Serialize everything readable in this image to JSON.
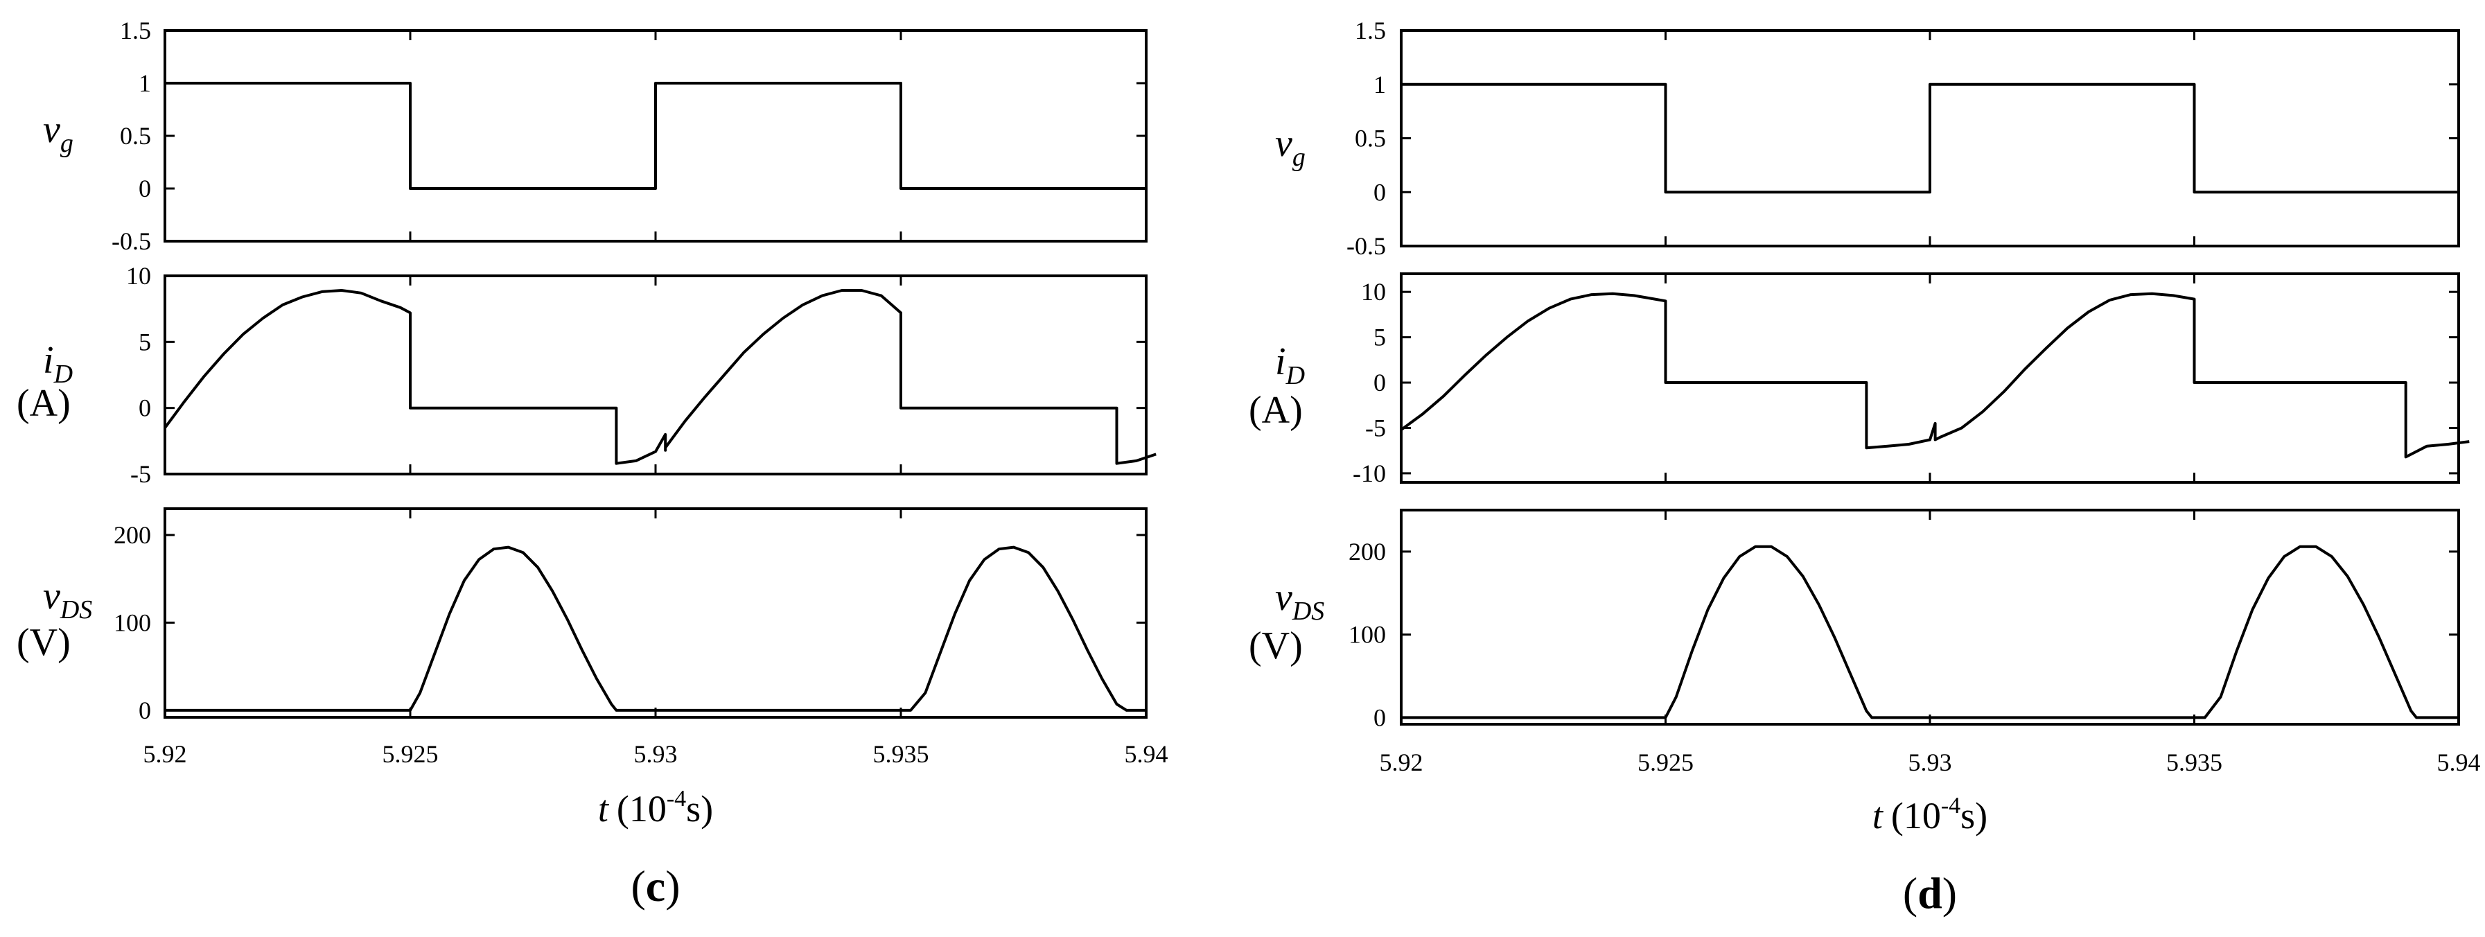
{
  "chart_data": [
    {
      "panel_label": "(c)",
      "panel_letter": "c",
      "type": "line",
      "x_tick_labels": [
        "5.92",
        "5.925",
        "5.93",
        "5.935",
        "5.94"
      ],
      "xlim": [
        5.92,
        5.94
      ],
      "xlabel": {
        "var": "t",
        "unit": "(10",
        "exp": "-4",
        "unit_end": "s)"
      },
      "subplots": [
        {
          "id": "vg",
          "ylabel": {
            "main": "v",
            "sub": "g"
          },
          "ylim": [
            -0.5,
            1.5
          ],
          "y_ticks": [
            1.5,
            1,
            0.5,
            0,
            -0.5
          ],
          "y_tick_labels": [
            "1.5",
            "1",
            "0.5",
            "0",
            "-0.5"
          ],
          "series": [
            {
              "x": [
                5.92,
                5.925,
                5.925,
                5.93,
                5.93,
                5.935,
                5.935,
                5.94
              ],
              "y": [
                1,
                1,
                0,
                0,
                1,
                1,
                0,
                0
              ]
            }
          ]
        },
        {
          "id": "iD",
          "ylabel": {
            "main": "i",
            "sub": "D",
            "unit": "(A)"
          },
          "ylim": [
            -5,
            10
          ],
          "y_ticks": [
            10,
            5,
            0,
            -5
          ],
          "y_tick_labels": [
            "10",
            "5",
            "0",
            "-5"
          ],
          "series": [
            {
              "x": [
                5.92,
                5.9204,
                5.9208,
                5.9212,
                5.9216,
                5.922,
                5.9224,
                5.9228,
                5.9232,
                5.9236,
                5.924,
                5.9244,
                5.9248,
                5.925,
                5.925,
                5.9292,
                5.9292,
                5.9296,
                5.93,
                5.9302,
                5.9302,
                5.9302,
                5.9306,
                5.931,
                5.9314,
                5.9318,
                5.9322,
                5.9326,
                5.933,
                5.9334,
                5.9338,
                5.9342,
                5.9346,
                5.935,
                5.935,
                5.9394,
                5.9394,
                5.9398,
                5.9402
              ],
              "y": [
                -1.5,
                0.5,
                2.4,
                4.1,
                5.6,
                6.8,
                7.8,
                8.4,
                8.8,
                8.9,
                8.7,
                8.1,
                7.6,
                7.2,
                0,
                0,
                -4.2,
                -4.0,
                -3.3,
                -2.0,
                -3.2,
                -3.0,
                -1.0,
                0.8,
                2.5,
                4.2,
                5.6,
                6.8,
                7.8,
                8.5,
                8.9,
                8.9,
                8.5,
                7.2,
                0,
                0,
                -4.2,
                -4.0,
                -3.5
              ]
            }
          ]
        },
        {
          "id": "vDS",
          "ylabel": {
            "main": "v",
            "sub": "DS",
            "unit": "(V)"
          },
          "ylim": [
            -8,
            230
          ],
          "y_ticks": [
            200,
            100,
            0
          ],
          "y_tick_labels": [
            "200",
            "100",
            "0"
          ],
          "series": [
            {
              "x": [
                5.92,
                5.925,
                5.9252,
                5.9255,
                5.9258,
                5.9261,
                5.9264,
                5.9267,
                5.927,
                5.9273,
                5.9276,
                5.9279,
                5.9282,
                5.9285,
                5.9288,
                5.9291,
                5.9292,
                5.9352,
                5.9355,
                5.9358,
                5.9361,
                5.9364,
                5.9367,
                5.937,
                5.9373,
                5.9376,
                5.9379,
                5.9382,
                5.9385,
                5.9388,
                5.9391,
                5.9394,
                5.9396,
                5.94
              ],
              "y": [
                0,
                0,
                20,
                65,
                110,
                148,
                172,
                184,
                186,
                180,
                163,
                136,
                104,
                69,
                36,
                7,
                0,
                0,
                20,
                65,
                110,
                148,
                172,
                184,
                186,
                180,
                163,
                136,
                104,
                69,
                36,
                7,
                0,
                0
              ]
            }
          ]
        }
      ]
    },
    {
      "panel_label": "(d)",
      "panel_letter": "d",
      "type": "line",
      "x_tick_labels": [
        "5.92",
        "5.925",
        "5.93",
        "5.935",
        "5.94"
      ],
      "xlim": [
        5.92,
        5.94
      ],
      "xlabel": {
        "var": "t",
        "unit": "(10",
        "exp": "-4",
        "unit_end": "s)"
      },
      "subplots": [
        {
          "id": "vg",
          "ylabel": {
            "main": "v",
            "sub": "g"
          },
          "ylim": [
            -0.5,
            1.5
          ],
          "y_ticks": [
            1.5,
            1,
            0.5,
            0,
            -0.5
          ],
          "y_tick_labels": [
            "1.5",
            "1",
            "0.5",
            "0",
            "-0.5"
          ],
          "series": [
            {
              "x": [
                5.92,
                5.925,
                5.925,
                5.93,
                5.93,
                5.935,
                5.935,
                5.94
              ],
              "y": [
                1,
                1,
                0,
                0,
                1,
                1,
                0,
                0
              ]
            }
          ]
        },
        {
          "id": "iD",
          "ylabel": {
            "main": "i",
            "sub": "D",
            "unit": "(A)"
          },
          "ylim": [
            -11,
            12
          ],
          "y_ticks": [
            10,
            5,
            0,
            -5,
            -10
          ],
          "y_tick_labels": [
            "10",
            "5",
            "0",
            "-5",
            "-10"
          ],
          "series": [
            {
              "x": [
                5.92,
                5.9204,
                5.9208,
                5.9212,
                5.9216,
                5.922,
                5.9224,
                5.9228,
                5.9232,
                5.9236,
                5.924,
                5.9244,
                5.9248,
                5.925,
                5.925,
                5.9288,
                5.9288,
                5.9292,
                5.9296,
                5.93,
                5.9301,
                5.9301,
                5.9302,
                5.9306,
                5.931,
                5.9314,
                5.9318,
                5.9322,
                5.9326,
                5.933,
                5.9334,
                5.9338,
                5.9342,
                5.9346,
                5.935,
                5.935,
                5.939,
                5.939,
                5.9394,
                5.9398,
                5.9402
              ],
              "y": [
                -5.2,
                -3.5,
                -1.5,
                0.8,
                3.0,
                5.0,
                6.8,
                8.2,
                9.2,
                9.7,
                9.8,
                9.6,
                9.2,
                9.0,
                0,
                0,
                -7.2,
                -7.0,
                -6.8,
                -6.3,
                -4.5,
                -6.3,
                -6.0,
                -5.0,
                -3.2,
                -1.0,
                1.5,
                3.8,
                6.0,
                7.8,
                9.1,
                9.7,
                9.8,
                9.6,
                9.2,
                0,
                0,
                -8.2,
                -7.0,
                -6.8,
                -6.5
              ]
            }
          ]
        },
        {
          "id": "vDS",
          "ylabel": {
            "main": "v",
            "sub": "DS",
            "unit": "(V)"
          },
          "ylim": [
            -8,
            250
          ],
          "y_ticks": [
            200,
            100,
            0
          ],
          "y_tick_labels": [
            "200",
            "100",
            "0"
          ],
          "series": [
            {
              "x": [
                5.92,
                5.925,
                5.9252,
                5.9255,
                5.9258,
                5.9261,
                5.9264,
                5.9267,
                5.927,
                5.9273,
                5.9276,
                5.9279,
                5.9282,
                5.9285,
                5.9288,
                5.9289,
                5.9352,
                5.9355,
                5.9358,
                5.9361,
                5.9364,
                5.9367,
                5.937,
                5.9373,
                5.9376,
                5.9379,
                5.9382,
                5.9385,
                5.9388,
                5.9391,
                5.9392,
                5.94
              ],
              "y": [
                0,
                0,
                25,
                80,
                130,
                168,
                194,
                206,
                206,
                194,
                170,
                136,
                96,
                52,
                8,
                0,
                0,
                25,
                80,
                130,
                168,
                194,
                206,
                206,
                194,
                170,
                136,
                96,
                52,
                8,
                0,
                0
              ]
            }
          ]
        }
      ]
    }
  ]
}
